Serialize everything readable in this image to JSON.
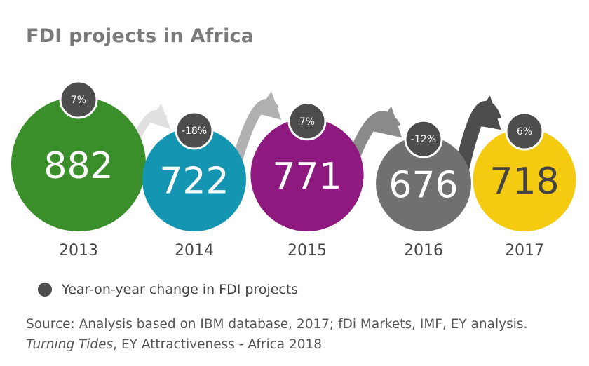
{
  "title": "FDI projects in Africa",
  "chart_data": {
    "type": "bubble",
    "categories": [
      "2013",
      "2014",
      "2015",
      "2016",
      "2017"
    ],
    "series": [
      {
        "values": [
          882,
          722,
          771,
          676,
          718
        ],
        "colors": [
          "#3a8f2b",
          "#1496b2",
          "#8e1a80",
          "#707070",
          "#f5cb12"
        ],
        "value_text_colors": [
          "#ffffff",
          "#ffffff",
          "#ffffff",
          "#ffffff",
          "#444444"
        ]
      },
      {
        "name": "Year-on-year change in FDI projects",
        "values": [
          "7%",
          "-18%",
          "7%",
          "-12%",
          "6%"
        ],
        "color": "#4d4d4d"
      }
    ],
    "arrows": {
      "between": [
        [
          "2013",
          "2014"
        ],
        [
          "2014",
          "2015"
        ],
        [
          "2015",
          "2016"
        ],
        [
          "2016",
          "2017"
        ]
      ],
      "colors": [
        "#e0e0e0",
        "#b0b0b0",
        "#8a8a8a",
        "#4d4d4d"
      ]
    }
  },
  "legend": {
    "label": "Year-on-year change in FDI projects",
    "color": "#4d4d4d"
  },
  "source": {
    "line1": "Source: Analysis based on IBM database, 2017; fDi Markets, IMF, EY analysis.",
    "line2_italic": "Turning Tides",
    "line2_rest": ", EY Attractiveness - Africa 2018"
  }
}
